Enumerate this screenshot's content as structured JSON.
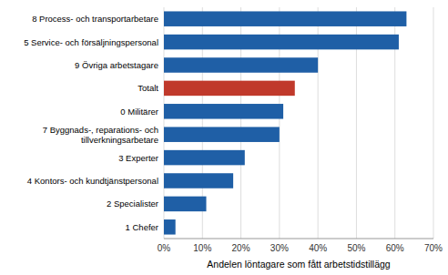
{
  "chart_data": {
    "type": "bar",
    "orientation": "horizontal",
    "categories": [
      "1 Chefer",
      "2 Specialister",
      "4 Kontors- och kundtjänstpersonal",
      "3 Experter",
      "7 Byggnads-, reparations- och\ntillverkningsarbetare",
      "0 Militärer",
      "Totalt",
      "9 Övriga arbetstagare",
      "5 Service- och försäljningspersonal",
      "8 Process- och transportarbetare"
    ],
    "values": [
      3,
      11,
      18,
      21,
      30,
      31,
      34,
      40,
      61,
      63
    ],
    "colors": [
      "#1f5fa6",
      "#1f5fa6",
      "#1f5fa6",
      "#1f5fa6",
      "#1f5fa6",
      "#1f5fa6",
      "#c0392b",
      "#1f5fa6",
      "#1f5fa6",
      "#1f5fa6"
    ],
    "xlabel": "Andelen löntagare som fått arbetstidstillägg",
    "xlim": [
      0,
      70
    ],
    "xticks": [
      {
        "value": 0,
        "label": "0%"
      },
      {
        "value": 10,
        "label": "10%"
      },
      {
        "value": 20,
        "label": "20%"
      },
      {
        "value": 30,
        "label": "30%"
      },
      {
        "value": 40,
        "label": "40%"
      },
      {
        "value": 50,
        "label": "50%"
      },
      {
        "value": 60,
        "label": "60%"
      },
      {
        "value": 70,
        "label": "70%"
      }
    ],
    "grid": true
  }
}
